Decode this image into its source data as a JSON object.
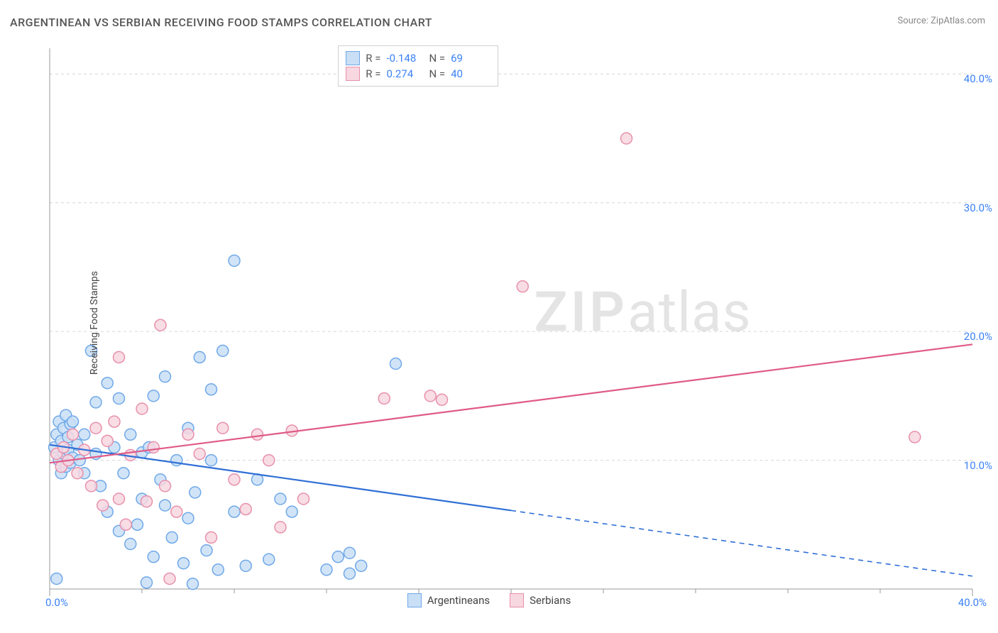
{
  "title": "ARGENTINEAN VS SERBIAN RECEIVING FOOD STAMPS CORRELATION CHART",
  "source_prefix": "Source: ",
  "source_name": "ZipAtlas.com",
  "ylabel": "Receiving Food Stamps",
  "watermark_zip": "ZIP",
  "watermark_atlas": "atlas",
  "chart": {
    "type": "scatter",
    "xlim": [
      0,
      40
    ],
    "ylim": [
      0,
      42
    ],
    "x_ticks_major": [
      0,
      20,
      40
    ],
    "x_ticks_minor": [
      4,
      8,
      12,
      16,
      24,
      28,
      32,
      36
    ],
    "y_ticks": [
      10,
      20,
      30,
      40
    ],
    "x_tick_labels": {
      "0": "0.0%",
      "40": "40.0%"
    },
    "y_tick_labels": {
      "10": "10.0%",
      "20": "20.0%",
      "30": "30.0%",
      "40": "40.0%"
    },
    "grid_color": "#d6d6d6",
    "axis_color": "#999999",
    "background_color": "#ffffff",
    "marker_radius": 8,
    "marker_stroke_width": 1.5,
    "line_width": 2.2,
    "series": [
      {
        "name": "Argentineans",
        "fill": "#c9dff6",
        "stroke": "#6fa8e8",
        "line_color": "#2f6fd6",
        "R": "-0.148",
        "N": "69",
        "trend": {
          "solid": [
            [
              0,
              11.2
            ],
            [
              20,
              6.1
            ]
          ],
          "dashed": [
            [
              20,
              6.1
            ],
            [
              40,
              1.0
            ]
          ]
        },
        "points": [
          [
            0.2,
            11.0
          ],
          [
            0.3,
            12.0
          ],
          [
            0.4,
            10.0
          ],
          [
            0.4,
            13.0
          ],
          [
            0.5,
            9.0
          ],
          [
            0.5,
            11.5
          ],
          [
            0.6,
            10.5
          ],
          [
            0.6,
            12.5
          ],
          [
            0.7,
            9.5
          ],
          [
            0.7,
            13.5
          ],
          [
            0.8,
            10.8
          ],
          [
            0.8,
            11.8
          ],
          [
            0.9,
            12.8
          ],
          [
            0.9,
            9.8
          ],
          [
            1.0,
            10.2
          ],
          [
            1.0,
            13.0
          ],
          [
            1.2,
            11.2
          ],
          [
            1.3,
            10.0
          ],
          [
            1.5,
            12.0
          ],
          [
            1.5,
            9.0
          ],
          [
            1.8,
            18.5
          ],
          [
            2.0,
            10.5
          ],
          [
            2.0,
            14.5
          ],
          [
            2.2,
            8.0
          ],
          [
            2.5,
            16.0
          ],
          [
            2.5,
            6.0
          ],
          [
            2.8,
            11.0
          ],
          [
            3.0,
            4.5
          ],
          [
            3.0,
            14.8
          ],
          [
            3.2,
            9.0
          ],
          [
            3.5,
            3.5
          ],
          [
            3.5,
            12.0
          ],
          [
            3.8,
            5.0
          ],
          [
            4.0,
            10.6
          ],
          [
            4.0,
            7.0
          ],
          [
            4.3,
            11.0
          ],
          [
            4.5,
            2.5
          ],
          [
            4.5,
            15.0
          ],
          [
            4.8,
            8.5
          ],
          [
            5.0,
            6.5
          ],
          [
            5.0,
            16.5
          ],
          [
            5.3,
            4.0
          ],
          [
            5.5,
            10.0
          ],
          [
            5.8,
            2.0
          ],
          [
            6.0,
            12.5
          ],
          [
            6.0,
            5.5
          ],
          [
            6.3,
            7.5
          ],
          [
            6.5,
            18.0
          ],
          [
            6.8,
            3.0
          ],
          [
            7.0,
            10.0
          ],
          [
            7.0,
            15.5
          ],
          [
            7.3,
            1.5
          ],
          [
            7.5,
            18.5
          ],
          [
            8.0,
            6.0
          ],
          [
            8.0,
            25.5
          ],
          [
            8.5,
            1.8
          ],
          [
            9.0,
            8.5
          ],
          [
            9.5,
            2.3
          ],
          [
            10.0,
            7.0
          ],
          [
            10.5,
            6.0
          ],
          [
            12.0,
            1.5
          ],
          [
            12.5,
            2.5
          ],
          [
            13.0,
            1.2
          ],
          [
            13.0,
            2.8
          ],
          [
            13.5,
            1.8
          ],
          [
            15.0,
            17.5
          ],
          [
            0.3,
            0.8
          ],
          [
            4.2,
            0.5
          ],
          [
            6.2,
            0.4
          ]
        ]
      },
      {
        "name": "Serbians",
        "fill": "#f7d7e0",
        "stroke": "#e890ab",
        "line_color": "#e05a87",
        "R": "0.274",
        "N": "40",
        "trend": {
          "solid": [
            [
              0,
              9.8
            ],
            [
              40,
              19.0
            ]
          ],
          "dashed": null
        },
        "points": [
          [
            0.3,
            10.5
          ],
          [
            0.5,
            9.5
          ],
          [
            0.6,
            11.0
          ],
          [
            0.8,
            10.0
          ],
          [
            1.0,
            12.0
          ],
          [
            1.2,
            9.0
          ],
          [
            1.5,
            10.8
          ],
          [
            1.8,
            8.0
          ],
          [
            2.0,
            12.5
          ],
          [
            2.3,
            6.5
          ],
          [
            2.5,
            11.5
          ],
          [
            3.0,
            18.0
          ],
          [
            3.0,
            7.0
          ],
          [
            3.3,
            5.0
          ],
          [
            3.5,
            10.4
          ],
          [
            4.0,
            14.0
          ],
          [
            4.2,
            6.8
          ],
          [
            4.5,
            11.0
          ],
          [
            4.8,
            20.5
          ],
          [
            5.0,
            8.0
          ],
          [
            5.5,
            6.0
          ],
          [
            6.0,
            12.0
          ],
          [
            6.5,
            10.5
          ],
          [
            7.0,
            4.0
          ],
          [
            7.5,
            12.5
          ],
          [
            8.0,
            8.5
          ],
          [
            8.5,
            6.2
          ],
          [
            9.0,
            12.0
          ],
          [
            9.5,
            10.0
          ],
          [
            10.0,
            4.8
          ],
          [
            10.5,
            12.3
          ],
          [
            11.0,
            7.0
          ],
          [
            14.5,
            14.8
          ],
          [
            16.5,
            15.0
          ],
          [
            17.0,
            14.7
          ],
          [
            20.5,
            23.5
          ],
          [
            25.0,
            35.0
          ],
          [
            37.5,
            11.8
          ],
          [
            5.2,
            0.8
          ],
          [
            2.8,
            13.0
          ]
        ]
      }
    ]
  },
  "legend_bottom": [
    {
      "label": "Argentineans",
      "fill": "#c9dff6",
      "stroke": "#6fa8e8"
    },
    {
      "label": "Serbians",
      "fill": "#f7d7e0",
      "stroke": "#e890ab"
    }
  ]
}
